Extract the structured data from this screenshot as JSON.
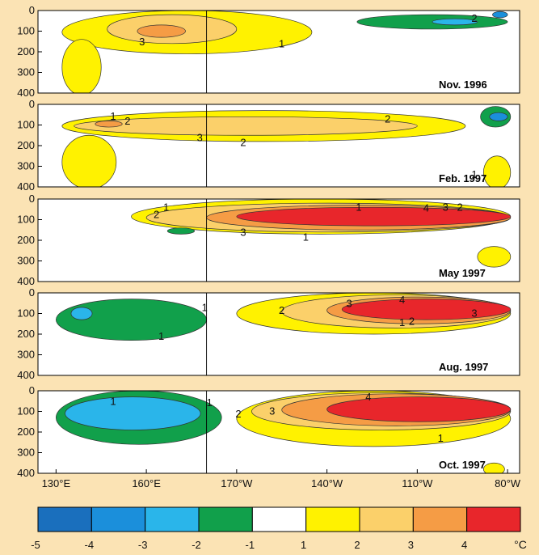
{
  "chart_data": {
    "type": "heatmap",
    "description_kind": "depth-longitude temperature anomaly sections",
    "x_ticks": [
      "130°E",
      "160°E",
      "170°W",
      "140°W",
      "110°W",
      "80°W"
    ],
    "y_ticks": [
      "0",
      "100",
      "200",
      "300",
      "400"
    ],
    "ylim": [
      0,
      400
    ],
    "panels": [
      {
        "label": "Nov. 1996",
        "contour_labels": [
          "3",
          "1",
          "2"
        ],
        "features": [
          {
            "anomaly": 1,
            "lon": [
              132,
              215
            ],
            "depth": [
              0,
              210
            ]
          },
          {
            "anomaly": 2,
            "lon": [
              147,
              190
            ],
            "depth": [
              20,
              160
            ]
          },
          {
            "anomaly": 3,
            "lon": [
              157,
              173
            ],
            "depth": [
              70,
              130
            ]
          },
          {
            "anomaly": 1,
            "lon": [
              132,
              145
            ],
            "depth": [
              140,
              410
            ]
          },
          {
            "anomaly": -1,
            "lon": [
              230,
              280
            ],
            "depth": [
              20,
              90
            ]
          },
          {
            "anomaly": -2,
            "lon": [
              255,
              270
            ],
            "depth": [
              40,
              70
            ]
          },
          {
            "anomaly": -3,
            "lon": [
              275,
              280
            ],
            "depth": [
              5,
              35
            ]
          }
        ]
      },
      {
        "label": "Feb. 1997",
        "contour_labels": [
          "1",
          "2",
          "3",
          "2",
          "2",
          "1"
        ],
        "features": [
          {
            "anomaly": 1,
            "lon": [
              132,
              266
            ],
            "depth": [
              30,
              180
            ]
          },
          {
            "anomaly": 2,
            "lon": [
              136,
              250
            ],
            "depth": [
              60,
              150
            ]
          },
          {
            "anomaly": 1,
            "lon": [
              132,
              150
            ],
            "depth": [
              150,
              410
            ]
          },
          {
            "anomaly": 3,
            "lon": [
              143,
              152
            ],
            "depth": [
              80,
              110
            ]
          },
          {
            "anomaly": -1,
            "lon": [
              271,
              281
            ],
            "depth": [
              10,
              110
            ]
          },
          {
            "anomaly": -3,
            "lon": [
              274,
              280
            ],
            "depth": [
              40,
              80
            ]
          },
          {
            "anomaly": 1,
            "lon": [
              272,
              281
            ],
            "depth": [
              250,
              410
            ]
          }
        ]
      },
      {
        "label": "May 1997",
        "contour_labels": [
          "1",
          "2",
          "1",
          "3",
          "4",
          "3",
          "2",
          "1"
        ],
        "features": [
          {
            "anomaly": 1,
            "lon": [
              155,
              281
            ],
            "depth": [
              0,
              170
            ]
          },
          {
            "anomaly": 2,
            "lon": [
              160,
              281
            ],
            "depth": [
              20,
              160
            ]
          },
          {
            "anomaly": 3,
            "lon": [
              180,
              281
            ],
            "depth": [
              30,
              150
            ]
          },
          {
            "anomaly": 4,
            "lon": [
              190,
              281
            ],
            "depth": [
              40,
              130
            ]
          },
          {
            "anomaly": -1,
            "lon": [
              167,
              176
            ],
            "depth": [
              140,
              170
            ]
          },
          {
            "anomaly": 1,
            "lon": [
              270,
              281
            ],
            "depth": [
              230,
              330
            ]
          }
        ]
      },
      {
        "label": "Aug. 1997",
        "contour_labels": [
          "1",
          "2",
          "3",
          "4",
          "1",
          "2",
          "3",
          "1"
        ],
        "features": [
          {
            "anomaly": 1,
            "lon": [
              190,
              281
            ],
            "depth": [
              0,
              200
            ]
          },
          {
            "anomaly": 2,
            "lon": [
              205,
              281
            ],
            "depth": [
              10,
              170
            ]
          },
          {
            "anomaly": 3,
            "lon": [
              220,
              281
            ],
            "depth": [
              20,
              150
            ]
          },
          {
            "anomaly": 4,
            "lon": [
              225,
              281
            ],
            "depth": [
              30,
              130
            ]
          },
          {
            "anomaly": -1,
            "lon": [
              130,
              180
            ],
            "depth": [
              30,
              230
            ]
          },
          {
            "anomaly": -2,
            "lon": [
              135,
              142
            ],
            "depth": [
              70,
              130
            ]
          }
        ]
      },
      {
        "label": "Oct. 1997",
        "contour_labels": [
          "1",
          "1",
          "2",
          "3",
          "4",
          "1"
        ],
        "features": [
          {
            "anomaly": -1,
            "lon": [
              130,
              185
            ],
            "depth": [
              0,
              260
            ]
          },
          {
            "anomaly": -2,
            "lon": [
              133,
              178
            ],
            "depth": [
              30,
              190
            ]
          },
          {
            "anomaly": 1,
            "lon": [
              190,
              281
            ],
            "depth": [
              0,
              270
            ]
          },
          {
            "anomaly": 2,
            "lon": [
              195,
              281
            ],
            "depth": [
              10,
              190
            ]
          },
          {
            "anomaly": 3,
            "lon": [
              205,
              281
            ],
            "depth": [
              15,
              170
            ]
          },
          {
            "anomaly": 4,
            "lon": [
              220,
              281
            ],
            "depth": [
              30,
              150
            ]
          },
          {
            "anomaly": 1,
            "lon": [
              272,
              279
            ],
            "depth": [
              350,
              410
            ]
          }
        ]
      }
    ],
    "colorbar": {
      "levels": [
        "-5",
        "-4",
        "-3",
        "-2",
        "-1",
        "1",
        "2",
        "3",
        "4"
      ],
      "colors": [
        "#1a6fbd",
        "#1b8fdb",
        "#2ab5ea",
        "#11a04b",
        "#ffffff",
        "#fff200",
        "#fbd06a",
        "#f59c45",
        "#e8262b"
      ],
      "unit": "°C"
    }
  }
}
